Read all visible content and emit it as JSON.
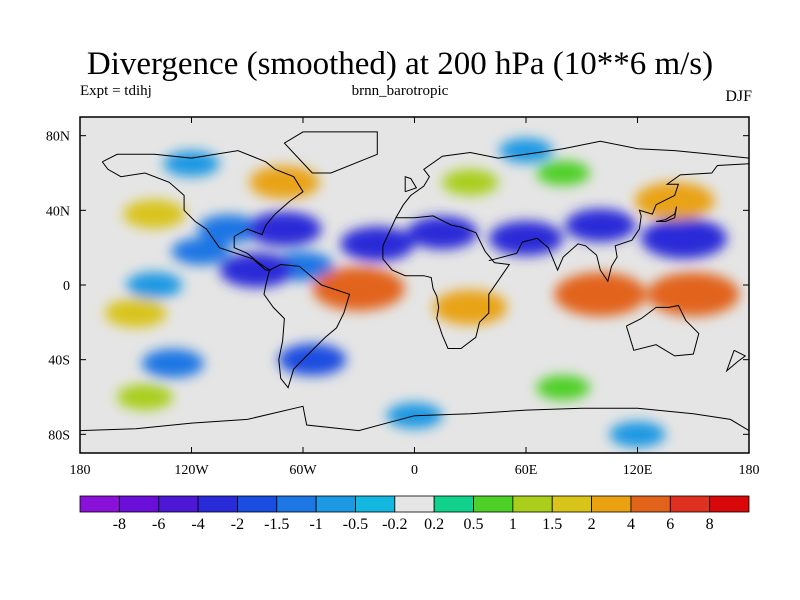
{
  "chart_data": {
    "type": "heatmap",
    "title": "Divergence (smoothed) at 200 hPa (10**6 m/s)",
    "subtitle_left": "Expt = tdihj",
    "subtitle_center": "brnn_barotropic",
    "subtitle_right": "DJF",
    "x_ticks": [
      {
        "value": -180,
        "label": "180"
      },
      {
        "value": -120,
        "label": "120W"
      },
      {
        "value": -60,
        "label": "60W"
      },
      {
        "value": 0,
        "label": "0"
      },
      {
        "value": 60,
        "label": "60E"
      },
      {
        "value": 120,
        "label": "120E"
      },
      {
        "value": 180,
        "label": "180"
      }
    ],
    "y_ticks": [
      {
        "value": 80,
        "label": "80N"
      },
      {
        "value": 40,
        "label": "40N"
      },
      {
        "value": 0,
        "label": "0"
      },
      {
        "value": -40,
        "label": "40S"
      },
      {
        "value": -80,
        "label": "80S"
      }
    ],
    "xlim": [
      -180,
      180
    ],
    "ylim": [
      -90,
      90
    ],
    "colorbar": {
      "levels": [
        "-8",
        "-6",
        "-4",
        "-2",
        "-1.5",
        "-1",
        "-0.5",
        "-0.2",
        "0.2",
        "0.5",
        "1",
        "1.5",
        "2",
        "4",
        "6",
        "8"
      ],
      "colors": [
        "#8a12d8",
        "#6a0fd8",
        "#4c18d6",
        "#2a2bd8",
        "#1a4ee0",
        "#1c76e4",
        "#1d98e3",
        "#14b7df",
        "#e5e5e5",
        "#10d28c",
        "#4fd028",
        "#a9cf1a",
        "#d9c41a",
        "#e9a312",
        "#e2641a",
        "#e0301f",
        "#d80808"
      ]
    },
    "field_regions": [
      {
        "lon": -115,
        "lat": 18,
        "value": -1.2
      },
      {
        "lon": -100,
        "lat": 30,
        "value": -1.5
      },
      {
        "lon": -70,
        "lat": 30,
        "value": -2.5
      },
      {
        "lon": -60,
        "lat": 10,
        "value": -1.5
      },
      {
        "lon": -20,
        "lat": 22,
        "value": -2.5
      },
      {
        "lon": 15,
        "lat": 28,
        "value": -2.2
      },
      {
        "lon": 60,
        "lat": 25,
        "value": -2.5
      },
      {
        "lon": 100,
        "lat": 32,
        "value": -2.2
      },
      {
        "lon": 145,
        "lat": 25,
        "value": -3.5
      },
      {
        "lon": -85,
        "lat": 8,
        "value": -2.5
      },
      {
        "lon": -140,
        "lat": 0,
        "value": -1.0
      },
      {
        "lon": -30,
        "lat": -2,
        "value": 5.5
      },
      {
        "lon": -55,
        "lat": -40,
        "value": -2.0
      },
      {
        "lon": -130,
        "lat": -42,
        "value": -1.5
      },
      {
        "lon": 30,
        "lat": -12,
        "value": 2.5
      },
      {
        "lon": 100,
        "lat": -5,
        "value": 4.0
      },
      {
        "lon": 150,
        "lat": -5,
        "value": 5.0
      },
      {
        "lon": -140,
        "lat": 38,
        "value": 1.5
      },
      {
        "lon": -150,
        "lat": -15,
        "value": 1.5
      },
      {
        "lon": -145,
        "lat": -60,
        "value": 1.0
      },
      {
        "lon": -70,
        "lat": 55,
        "value": 2.2
      },
      {
        "lon": 30,
        "lat": 55,
        "value": 1.0
      },
      {
        "lon": 140,
        "lat": 45,
        "value": 3.0
      },
      {
        "lon": 80,
        "lat": 60,
        "value": 0.8
      },
      {
        "lon": 80,
        "lat": -55,
        "value": 0.8
      },
      {
        "lon": -120,
        "lat": 65,
        "value": -1.0
      },
      {
        "lon": 60,
        "lat": 72,
        "value": -0.8
      },
      {
        "lon": 0,
        "lat": -70,
        "value": -1.0
      },
      {
        "lon": 120,
        "lat": -80,
        "value": -1.0
      }
    ]
  }
}
